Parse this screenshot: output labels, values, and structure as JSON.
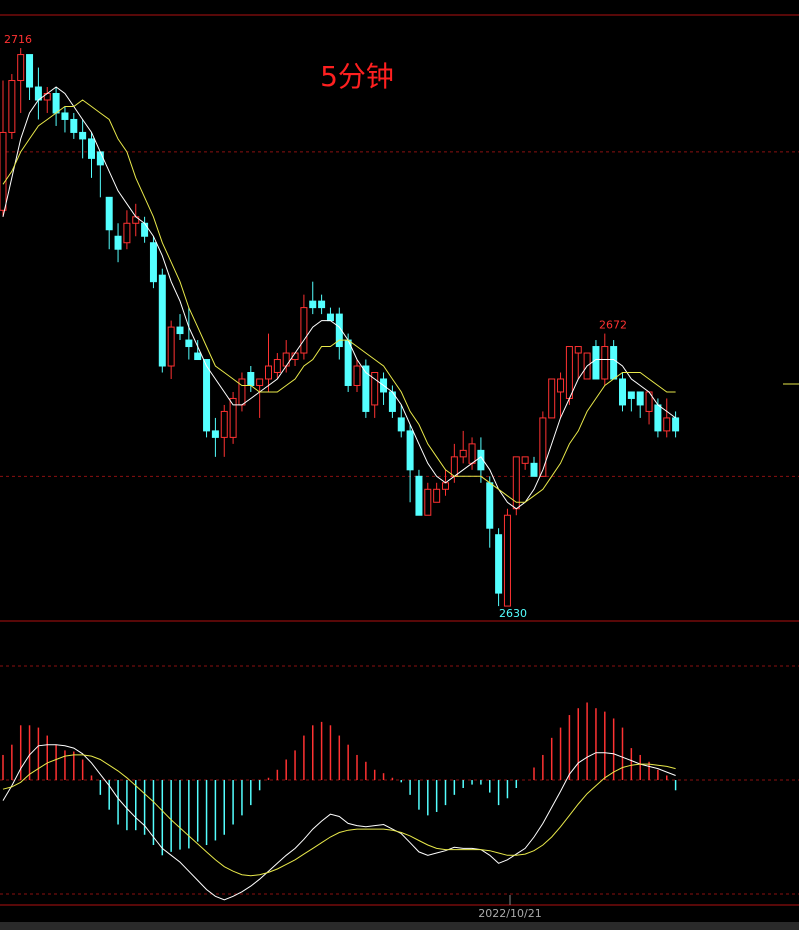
{
  "chart_data": [
    {
      "type": "candlestick",
      "title": "5分钟",
      "ylim": [
        2627.7,
        2721.1
      ],
      "grid_values": [
        2700,
        2650
      ],
      "up_color": "#ff3232",
      "down_color": "#54ffff",
      "open": [
        2691,
        2703,
        2711,
        2715,
        2710,
        2708,
        2709,
        2706,
        2705,
        2703,
        2702,
        2700,
        2693,
        2687,
        2686,
        2689,
        2689,
        2686,
        2681,
        2667,
        2673,
        2671,
        2669,
        2668,
        2657,
        2656,
        2656,
        2661,
        2666,
        2664,
        2665,
        2666,
        2667,
        2668,
        2669,
        2677,
        2677,
        2675,
        2675,
        2671,
        2664,
        2667,
        2661,
        2665,
        2663,
        2659,
        2657,
        2650,
        2644,
        2646,
        2648,
        2650,
        2653,
        2652,
        2654,
        2649,
        2641,
        2630,
        2645,
        2652,
        2652,
        2650,
        2659,
        2663,
        2662,
        2669,
        2665,
        2670,
        2665,
        2670,
        2665,
        2663,
        2663,
        2660,
        2661,
        2657,
        2659
      ],
      "high": [
        2711,
        2712,
        2716,
        2715,
        2713,
        2710,
        2710,
        2707,
        2706,
        2705,
        2703,
        2700,
        2693,
        2689,
        2691,
        2692,
        2690,
        2687,
        2682,
        2674,
        2675,
        2676,
        2671,
        2668,
        2659,
        2661,
        2663,
        2666,
        2667,
        2665,
        2672,
        2669,
        2671,
        2669,
        2678,
        2680,
        2678,
        2676,
        2676,
        2672,
        2668,
        2668,
        2666,
        2666,
        2664,
        2661,
        2658,
        2651,
        2649,
        2649,
        2651,
        2655,
        2657,
        2656,
        2656,
        2650,
        2642,
        2645,
        2653,
        2653,
        2653,
        2660,
        2665,
        2666,
        2670,
        2670,
        2669,
        2671,
        2672,
        2671,
        2666,
        2663,
        2663,
        2663,
        2662,
        2662,
        2660
      ],
      "low": [
        2690,
        2702,
        2706,
        2708,
        2705,
        2706,
        2704,
        2703,
        2702,
        2699,
        2696,
        2693,
        2685,
        2683,
        2685,
        2687,
        2686,
        2679,
        2666,
        2665,
        2671,
        2668,
        2668,
        2656,
        2653,
        2653,
        2655,
        2660,
        2663,
        2659,
        2663,
        2665,
        2666,
        2667,
        2668,
        2675,
        2675,
        2674,
        2668,
        2663,
        2663,
        2659,
        2659,
        2661,
        2659,
        2656,
        2646,
        2644,
        2644,
        2646,
        2647,
        2649,
        2652,
        2651,
        2649,
        2639,
        2630,
        2630,
        2644,
        2651,
        2650,
        2650,
        2659,
        2659,
        2661,
        2665,
        2665,
        2665,
        2664,
        2665,
        2660,
        2660,
        2659,
        2658,
        2656,
        2656,
        2656
      ],
      "close": [
        2703,
        2711,
        2715,
        2710,
        2708,
        2709,
        2706,
        2705,
        2703,
        2702,
        2699,
        2698,
        2688,
        2685,
        2689,
        2690,
        2687,
        2680,
        2667,
        2673,
        2672,
        2670,
        2668,
        2657,
        2656,
        2660,
        2662,
        2665,
        2664,
        2665,
        2667,
        2668,
        2669,
        2669,
        2676,
        2676,
        2676,
        2674,
        2670,
        2664,
        2667,
        2660,
        2666,
        2663,
        2660,
        2657,
        2651,
        2644,
        2648,
        2648,
        2649,
        2653,
        2654,
        2655,
        2651,
        2642,
        2632,
        2644,
        2653,
        2653,
        2650,
        2659,
        2665,
        2665,
        2670,
        2670,
        2669,
        2665,
        2670,
        2665,
        2661,
        2662,
        2661,
        2663,
        2657,
        2659,
        2657
      ],
      "series": [
        {
          "color": "#ffffff",
          "values": [
            2690,
            2696,
            2702,
            2706,
            2708,
            2709,
            2710,
            2709,
            2707,
            2705,
            2703,
            2700,
            2697,
            2694,
            2692,
            2690,
            2689,
            2687,
            2684,
            2680,
            2677,
            2673,
            2670,
            2667,
            2665,
            2663,
            2661,
            2661,
            2662,
            2663,
            2664,
            2665,
            2667,
            2669,
            2671,
            2673,
            2674,
            2674,
            2673,
            2671,
            2668,
            2666,
            2665,
            2664,
            2663,
            2661,
            2658,
            2655,
            2652,
            2650,
            2649,
            2650,
            2651,
            2652,
            2653,
            2651,
            2648,
            2646,
            2645,
            2646,
            2648,
            2651,
            2655,
            2659,
            2662,
            2665,
            2667,
            2668,
            2668,
            2668,
            2667,
            2665,
            2664,
            2663,
            2661,
            2660,
            2659
          ]
        },
        {
          "color": "#e8e84a",
          "values": [
            2695,
            2697,
            2700,
            2702,
            2704,
            2705,
            2706,
            2707,
            2707,
            2708,
            2707,
            2706,
            2705,
            2702,
            2700,
            2696,
            2693,
            2690,
            2686,
            2683,
            2680,
            2676,
            2673,
            2670,
            2667,
            2666,
            2665,
            2664,
            2664,
            2663,
            2663,
            2663,
            2664,
            2665,
            2667,
            2668,
            2670,
            2670,
            2671,
            2671,
            2670,
            2669,
            2668,
            2667,
            2665,
            2663,
            2660,
            2658,
            2655,
            2653,
            2651,
            2650,
            2650,
            2650,
            2650,
            2649,
            2648,
            2647,
            2646,
            2646,
            2647,
            2648,
            2650,
            2652,
            2655,
            2657,
            2660,
            2662,
            2664,
            2665,
            2666,
            2666,
            2666,
            2665,
            2664,
            2663,
            2663
          ]
        }
      ],
      "annotations": [
        "2716",
        "2630",
        "2672"
      ]
    },
    {
      "type": "macd",
      "ylim": [
        -10.96,
        13.86
      ],
      "grid_values": [
        10,
        0,
        -10
      ],
      "up_color": "#ff3232",
      "down_color": "#54ffff",
      "values": [
        2.2,
        3.1,
        4.8,
        4.8,
        4.6,
        3.9,
        3.1,
        2.6,
        2.5,
        1.8,
        0.4,
        -1.3,
        -2.6,
        -3.9,
        -4.4,
        -4.4,
        -4.8,
        -5.7,
        -6.6,
        -6.3,
        -6.1,
        -6.0,
        -5.4,
        -5.7,
        -5.3,
        -4.8,
        -3.9,
        -3.1,
        -2.2,
        -0.9,
        0.2,
        0.9,
        1.8,
        2.6,
        3.9,
        4.8,
        5.1,
        4.8,
        3.9,
        3.1,
        2.2,
        1.6,
        0.9,
        0.6,
        0.2,
        -0.2,
        -1.3,
        -2.6,
        -3.1,
        -2.8,
        -2.2,
        -1.3,
        -0.7,
        -0.4,
        -0.4,
        -1.1,
        -2.2,
        -1.6,
        -0.7,
        0.0,
        1.1,
        2.2,
        3.7,
        4.6,
        5.7,
        6.3,
        6.8,
        6.3,
        6.0,
        5.4,
        4.6,
        2.8,
        2.2,
        1.6,
        0.9,
        0.4,
        -0.9
      ],
      "series": [
        {
          "color": "#ffffff",
          "values": [
            -1.8,
            -0.5,
            1.0,
            2.2,
            3.0,
            3.1,
            3.1,
            3.0,
            2.8,
            2.3,
            1.5,
            0.5,
            -0.5,
            -1.6,
            -2.5,
            -3.3,
            -4.0,
            -5.0,
            -6.0,
            -6.6,
            -7.2,
            -8.0,
            -8.8,
            -9.6,
            -10.2,
            -10.5,
            -10.2,
            -9.8,
            -9.3,
            -8.7,
            -8.0,
            -7.3,
            -6.6,
            -6.0,
            -5.2,
            -4.3,
            -3.6,
            -3.0,
            -3.2,
            -3.8,
            -4.0,
            -4.1,
            -4.0,
            -3.9,
            -4.3,
            -4.7,
            -5.5,
            -6.3,
            -6.6,
            -6.4,
            -6.2,
            -5.9,
            -6.0,
            -6.0,
            -6.1,
            -6.6,
            -7.3,
            -7.0,
            -6.5,
            -6.0,
            -5.0,
            -3.8,
            -2.4,
            -1.0,
            0.5,
            1.5,
            2.0,
            2.4,
            2.4,
            2.3,
            2.0,
            1.7,
            1.4,
            1.2,
            1.0,
            0.7,
            0.4
          ]
        },
        {
          "color": "#e8e84a",
          "values": [
            -0.8,
            -0.6,
            -0.2,
            0.5,
            1.0,
            1.5,
            1.8,
            2.1,
            2.2,
            2.2,
            2.1,
            1.8,
            1.3,
            0.8,
            0.2,
            -0.5,
            -1.2,
            -1.9,
            -2.7,
            -3.5,
            -4.2,
            -4.9,
            -5.6,
            -6.3,
            -7.0,
            -7.6,
            -8.0,
            -8.3,
            -8.4,
            -8.3,
            -8.1,
            -7.8,
            -7.4,
            -7.0,
            -6.5,
            -6.0,
            -5.5,
            -5.0,
            -4.6,
            -4.4,
            -4.3,
            -4.3,
            -4.3,
            -4.3,
            -4.4,
            -4.6,
            -4.9,
            -5.3,
            -5.7,
            -6.0,
            -6.1,
            -6.1,
            -6.1,
            -6.1,
            -6.1,
            -6.2,
            -6.4,
            -6.6,
            -6.6,
            -6.5,
            -6.2,
            -5.7,
            -5.0,
            -4.1,
            -3.1,
            -2.1,
            -1.2,
            -0.5,
            0.2,
            0.7,
            1.1,
            1.3,
            1.4,
            1.4,
            1.3,
            1.2,
            1.0
          ]
        }
      ],
      "x_label": "2022/10/21"
    }
  ]
}
